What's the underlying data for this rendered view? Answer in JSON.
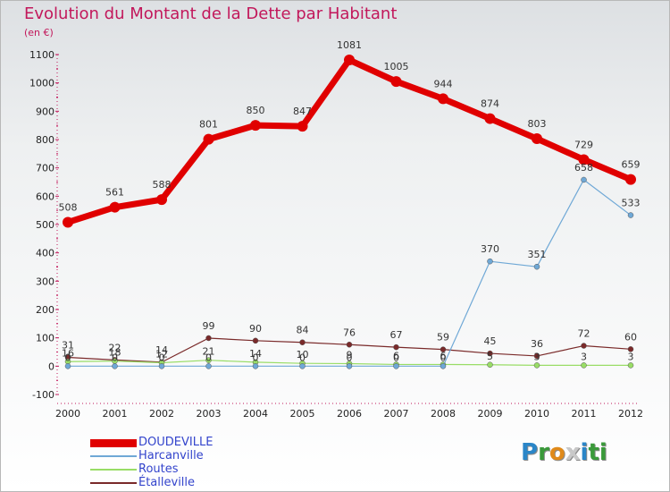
{
  "header": {
    "title": "Evolution du Montant de la Dette par Habitant",
    "subtitle": "(en €)"
  },
  "logo": {
    "letters": [
      "P",
      "r",
      "o",
      "x",
      "i",
      "t",
      "i"
    ],
    "colors": [
      "#2a86c8",
      "#3a9a3a",
      "#e08a1a",
      "#c8c8c8",
      "#2a86c8",
      "#3a9a3a",
      "#3a9a3a"
    ]
  },
  "chart_data": {
    "type": "line",
    "title": "Evolution du Montant de la Dette par Habitant",
    "subtitle": "(en €)",
    "xlabel": "",
    "ylabel": "",
    "x": [
      2000,
      2001,
      2002,
      2003,
      2004,
      2005,
      2006,
      2007,
      2008,
      2009,
      2010,
      2011,
      2012
    ],
    "ylim": [
      -100,
      1100
    ],
    "yticks": [
      -100,
      0,
      100,
      200,
      300,
      400,
      500,
      600,
      700,
      800,
      900,
      1000,
      1100
    ],
    "grid": false,
    "legend": "bottom-left",
    "series": [
      {
        "name": "DOUDEVILLE",
        "color": "#e00000",
        "values": [
          508,
          561,
          588,
          801,
          850,
          847,
          1081,
          1005,
          944,
          874,
          803,
          729,
          659
        ],
        "labels": [
          "508",
          "561",
          "588",
          "801",
          "850",
          "847",
          "1081",
          "1005",
          "944",
          "874",
          "803",
          "729",
          "659"
        ]
      },
      {
        "name": "Harcanville",
        "color": "#6fa8d6",
        "values": [
          0,
          0,
          0,
          0,
          0,
          0,
          0,
          0,
          0,
          370,
          351,
          658,
          533
        ],
        "labels": [
          "0",
          "0",
          "0",
          "0",
          "0",
          "0",
          "0",
          "0",
          "0",
          "370",
          "351",
          "658",
          "533"
        ]
      },
      {
        "name": "Routes",
        "color": "#99dd66",
        "values": [
          16,
          18,
          12,
          21,
          14,
          10,
          9,
          6,
          6,
          5,
          3,
          3,
          3
        ],
        "labels": [
          "16",
          "18",
          "12",
          "21",
          "14",
          "10",
          "9",
          "6",
          "6",
          "5",
          "3",
          "3",
          "3"
        ]
      },
      {
        "name": "Étalleville",
        "color": "#7a2a2a",
        "values": [
          31,
          22,
          14,
          99,
          90,
          84,
          76,
          67,
          59,
          45,
          36,
          72,
          60
        ],
        "labels": [
          "31",
          "22",
          "14",
          "99",
          "90",
          "84",
          "76",
          "67",
          "59",
          "45",
          "36",
          "72",
          "60"
        ]
      }
    ]
  }
}
